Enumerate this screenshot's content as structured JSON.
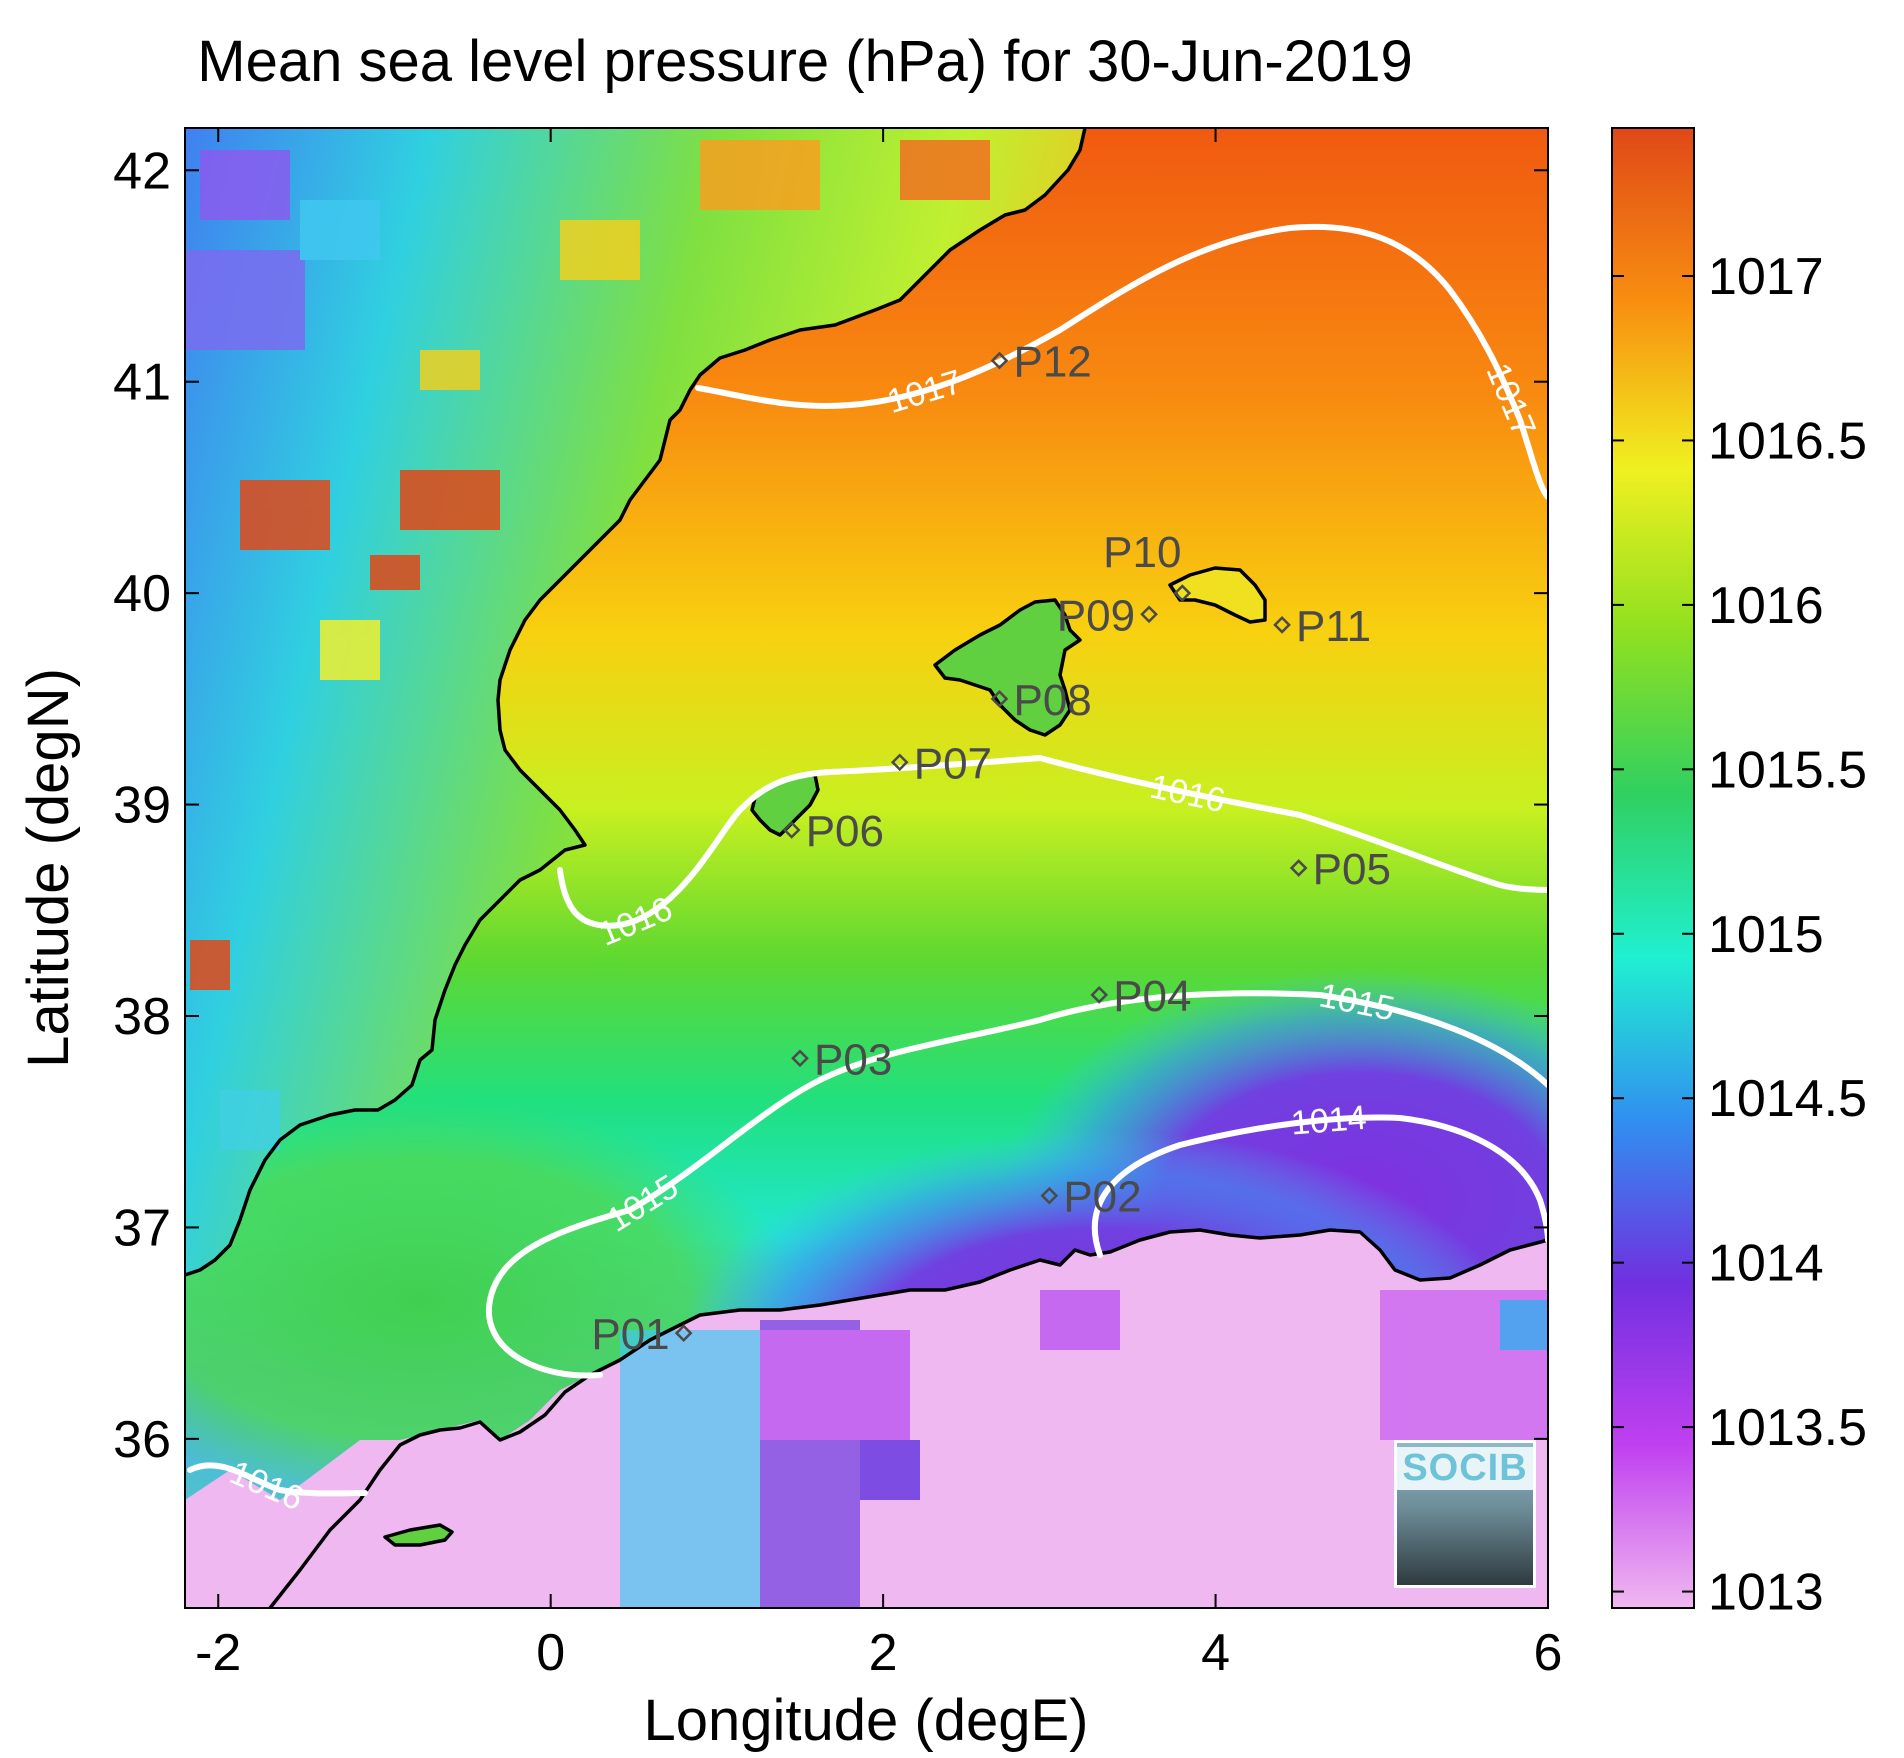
{
  "title": "Mean sea level pressure (hPa) for 30-Jun-2019",
  "chart_data": {
    "type": "heatmap",
    "title": "Mean sea level pressure (hPa) for 30-Jun-2019",
    "xlabel": "Longitude (degE)",
    "ylabel": "Latitude (degN)",
    "xlim": [
      -2.2,
      6.0
    ],
    "ylim": [
      35.2,
      42.2
    ],
    "x_ticks": [
      "-2",
      "0",
      "2",
      "4",
      "6"
    ],
    "y_ticks": [
      "36",
      "37",
      "38",
      "39",
      "40",
      "41",
      "42"
    ],
    "colorbar": {
      "range": [
        1012.95,
        1017.45
      ],
      "ticks": [
        "1013",
        "1013.5",
        "1014",
        "1014.5",
        "1015",
        "1015.5",
        "1016",
        "1016.5",
        "1017"
      ]
    },
    "contours": [
      {
        "level": 1017,
        "label": "1017"
      },
      {
        "level": 1016,
        "label": "1016"
      },
      {
        "level": 1015,
        "label": "1015"
      },
      {
        "level": 1014,
        "label": "1014"
      }
    ],
    "stations": [
      {
        "name": "P01",
        "lon": 0.8,
        "lat": 36.5
      },
      {
        "name": "P02",
        "lon": 3.0,
        "lat": 37.15
      },
      {
        "name": "P03",
        "lon": 1.5,
        "lat": 37.8
      },
      {
        "name": "P04",
        "lon": 3.3,
        "lat": 38.1
      },
      {
        "name": "P05",
        "lon": 4.5,
        "lat": 38.7
      },
      {
        "name": "P06",
        "lon": 1.45,
        "lat": 38.88
      },
      {
        "name": "P07",
        "lon": 2.1,
        "lat": 39.2
      },
      {
        "name": "P08",
        "lon": 2.7,
        "lat": 39.5
      },
      {
        "name": "P09",
        "lon": 3.6,
        "lat": 39.9
      },
      {
        "name": "P10",
        "lon": 3.8,
        "lat": 40.0
      },
      {
        "name": "P11",
        "lon": 4.4,
        "lat": 39.85
      },
      {
        "name": "P12",
        "lon": 2.7,
        "lat": 41.1
      }
    ]
  },
  "logo": {
    "text": "SOCIB"
  },
  "colors": {
    "coast": "#000000",
    "contour": "#ffffff",
    "station": "#4a4a4a"
  }
}
